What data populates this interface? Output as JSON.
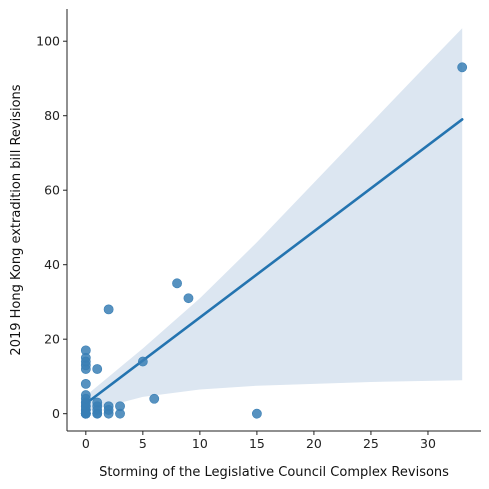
{
  "chart_data": {
    "type": "scatter",
    "xlabel": "Storming of the Legislative Council Complex Revisons",
    "ylabel": "2019 Hong Kong extradition bill Revisions",
    "xlim": [
      -1.65,
      34.65
    ],
    "ylim": [
      -4.65,
      108.65
    ],
    "xticks": [
      0,
      5,
      10,
      15,
      20,
      25,
      30
    ],
    "yticks": [
      0,
      20,
      40,
      60,
      80,
      100
    ],
    "x": [
      0,
      0,
      0,
      0,
      0,
      0,
      0,
      0,
      0,
      0,
      0,
      0,
      0,
      0,
      0,
      0,
      0,
      0,
      0,
      0,
      0,
      0,
      1,
      1,
      1,
      1,
      1,
      2,
      2,
      2,
      3,
      3,
      5,
      6,
      8,
      9,
      15,
      33,
      1,
      2
    ],
    "y": [
      0,
      0,
      0,
      0,
      0,
      1,
      1,
      1,
      2,
      2,
      3,
      3,
      4,
      5,
      8,
      12,
      13,
      14,
      15,
      17,
      0,
      0,
      0,
      1,
      2,
      3,
      12,
      0,
      1,
      2,
      0,
      2,
      14,
      4,
      35,
      31,
      0,
      93,
      0,
      28
    ],
    "regression_line": {
      "x": [
        0,
        33
      ],
      "y": [
        2.7,
        79
      ]
    },
    "confidence_band": {
      "x": [
        0,
        5,
        10,
        15,
        20,
        25,
        30,
        33
      ],
      "lower": [
        0.5,
        4.5,
        6.5,
        7.5,
        8.0,
        8.5,
        8.8,
        9.0
      ],
      "upper": [
        4.8,
        17.5,
        31.0,
        46.0,
        62.0,
        78.0,
        94.0,
        103.5
      ]
    },
    "grid": false,
    "colors": {
      "points": "#3a7fb5",
      "line": "#2474b0",
      "band": "#dce6f1",
      "axis": "#222222"
    }
  }
}
